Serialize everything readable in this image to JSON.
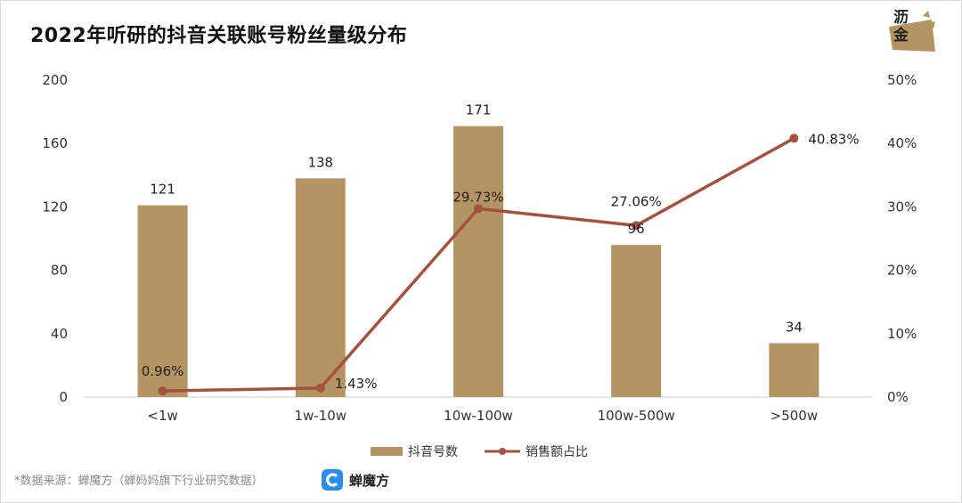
{
  "title": "2022年听研的抖音关联账号粉丝量级分布",
  "logo": {
    "line1": "沥",
    "line2": "金"
  },
  "source": "*数据来源：蝉魔方（蝉妈妈旗下行业研究数据）",
  "brand": {
    "name": "蝉魔方"
  },
  "colors": {
    "bar": "#b49462",
    "line": "#a5513f"
  },
  "chart_data": {
    "type": "bar",
    "categories": [
      "<1w",
      "1w-10w",
      "10w-100w",
      "100w-500w",
      ">500w"
    ],
    "series": [
      {
        "name": "抖音号数",
        "type": "bar",
        "axis": "left",
        "values": [
          121,
          138,
          171,
          96,
          34
        ],
        "labels": [
          "121",
          "138",
          "171",
          "96",
          "34"
        ]
      },
      {
        "name": "销售额占比",
        "type": "line",
        "axis": "right",
        "values": [
          0.96,
          1.43,
          29.73,
          27.06,
          40.83
        ],
        "labels": [
          "0.96%",
          "1.43%",
          "29.73%",
          "27.06%",
          "40.83%"
        ]
      }
    ],
    "y_left": {
      "min": 0,
      "max": 200,
      "ticks": [
        "0",
        "40",
        "80",
        "120",
        "160",
        "200"
      ]
    },
    "y_right": {
      "min": 0,
      "max": 50,
      "ticks": [
        "0%",
        "10%",
        "20%",
        "30%",
        "40%",
        "50%"
      ]
    },
    "legend_position": "bottom",
    "grid": false
  }
}
